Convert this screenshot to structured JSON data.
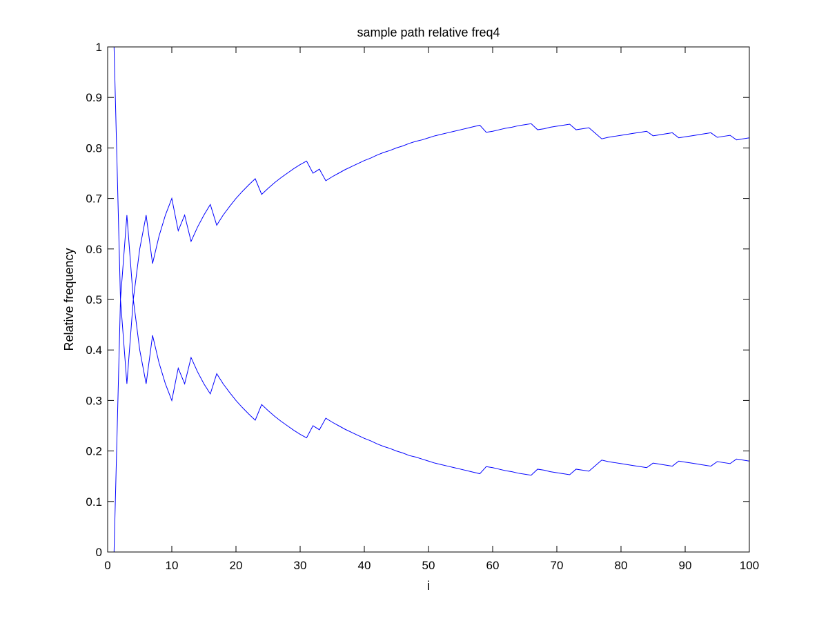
{
  "chart_data": {
    "type": "line",
    "title": "sample path relative freq4",
    "xlabel": "i",
    "ylabel": "Relative frequency",
    "xlim": [
      0,
      100
    ],
    "ylim": [
      0,
      1
    ],
    "grid": false,
    "legend": "none",
    "colors": {
      "line": "#0000ff",
      "axes": "#000000",
      "background": "#ffffff"
    },
    "x_ticks": [
      "0",
      "10",
      "20",
      "30",
      "40",
      "50",
      "60",
      "70",
      "80",
      "90",
      "100"
    ],
    "y_ticks": [
      "0",
      "0.1",
      "0.2",
      "0.3",
      "0.4",
      "0.5",
      "0.6",
      "0.7",
      "0.8",
      "0.9",
      "1"
    ],
    "x": [
      1,
      2,
      3,
      4,
      5,
      6,
      7,
      8,
      9,
      10,
      11,
      12,
      13,
      14,
      15,
      16,
      17,
      18,
      19,
      20,
      21,
      22,
      23,
      24,
      25,
      26,
      27,
      28,
      29,
      30,
      31,
      32,
      33,
      34,
      35,
      36,
      37,
      38,
      39,
      40,
      41,
      42,
      43,
      44,
      45,
      46,
      47,
      48,
      49,
      50,
      51,
      52,
      53,
      54,
      55,
      56,
      57,
      58,
      59,
      60,
      61,
      62,
      63,
      64,
      65,
      66,
      67,
      68,
      69,
      70,
      71,
      72,
      73,
      74,
      75,
      76,
      77,
      78,
      79,
      80,
      81,
      82,
      83,
      84,
      85,
      86,
      87,
      88,
      89,
      90,
      91,
      92,
      93,
      94,
      95,
      96,
      97,
      98,
      99,
      100
    ],
    "series": [
      {
        "values": [
          1,
          0.5,
          0.667,
          0.5,
          0.6,
          0.667,
          0.571,
          0.625,
          0.667,
          0.7,
          0.636,
          0.667,
          0.615,
          0.643,
          0.667,
          0.688,
          0.647,
          0.667,
          0.684,
          0.7,
          0.714,
          0.727,
          0.739,
          0.708,
          0.72,
          0.731,
          0.741,
          0.75,
          0.759,
          0.767,
          0.774,
          0.75,
          0.758,
          0.735,
          0.743,
          0.75,
          0.757,
          0.763,
          0.769,
          0.775,
          0.78,
          0.786,
          0.791,
          0.795,
          0.8,
          0.804,
          0.809,
          0.813,
          0.816,
          0.82,
          0.824,
          0.827,
          0.83,
          0.833,
          0.836,
          0.839,
          0.842,
          0.845,
          0.831,
          0.833,
          0.836,
          0.839,
          0.841,
          0.844,
          0.846,
          0.848,
          0.836,
          0.838,
          0.841,
          0.843,
          0.845,
          0.847,
          0.836,
          0.838,
          0.84,
          0.829,
          0.818,
          0.821,
          0.823,
          0.825,
          0.827,
          0.829,
          0.831,
          0.833,
          0.824,
          0.826,
          0.828,
          0.83,
          0.82,
          0.822,
          0.824,
          0.826,
          0.828,
          0.83,
          0.821,
          0.823,
          0.825,
          0.816,
          0.818,
          0.82
        ]
      },
      {
        "values": [
          0,
          0.5,
          0.333,
          0.5,
          0.4,
          0.333,
          0.429,
          0.375,
          0.333,
          0.3,
          0.364,
          0.333,
          0.385,
          0.357,
          0.333,
          0.313,
          0.353,
          0.333,
          0.316,
          0.3,
          0.286,
          0.273,
          0.261,
          0.292,
          0.28,
          0.269,
          0.259,
          0.25,
          0.241,
          0.233,
          0.226,
          0.25,
          0.242,
          0.265,
          0.257,
          0.25,
          0.243,
          0.237,
          0.231,
          0.225,
          0.22,
          0.214,
          0.209,
          0.205,
          0.2,
          0.196,
          0.191,
          0.188,
          0.184,
          0.18,
          0.176,
          0.173,
          0.17,
          0.167,
          0.164,
          0.161,
          0.158,
          0.155,
          0.169,
          0.167,
          0.164,
          0.161,
          0.159,
          0.156,
          0.154,
          0.152,
          0.164,
          0.162,
          0.159,
          0.157,
          0.155,
          0.153,
          0.164,
          0.162,
          0.16,
          0.171,
          0.182,
          0.179,
          0.177,
          0.175,
          0.173,
          0.171,
          0.169,
          0.167,
          0.176,
          0.174,
          0.172,
          0.17,
          0.18,
          0.178,
          0.176,
          0.174,
          0.172,
          0.17,
          0.179,
          0.177,
          0.175,
          0.184,
          0.182,
          0.18
        ]
      }
    ]
  }
}
